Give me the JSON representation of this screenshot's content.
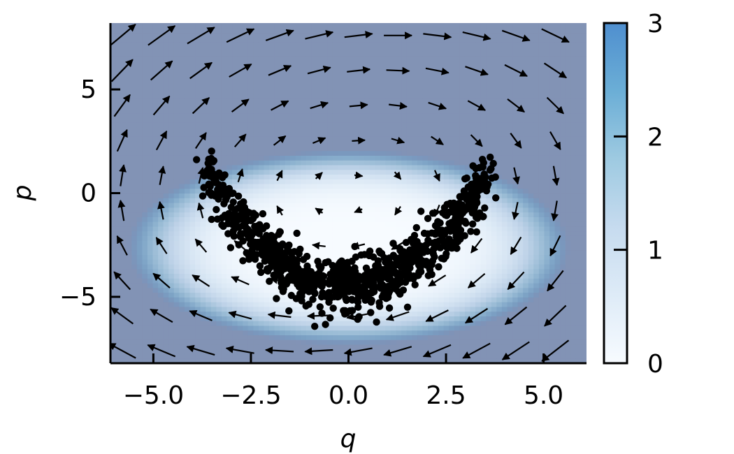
{
  "chart_data": [
    {
      "type": "heatmap",
      "xlabel": "q",
      "ylabel": "p",
      "xlim": [
        -6.1,
        6.1
      ],
      "ylim": [
        -8.2,
        8.2
      ],
      "x_ticks": [
        -5.0,
        -2.5,
        0.0,
        2.5,
        5.0
      ],
      "x_tick_labels": [
        "−5.0",
        "−2.5",
        "0.0",
        "2.5",
        "5.0"
      ],
      "y_ticks": [
        -5,
        0,
        5
      ],
      "y_tick_labels": [
        "−5",
        "0",
        "5"
      ],
      "grid": false,
      "heatmap": {
        "field": "energy level E(q,p), clipped at colorbar max",
        "valley_center": [
          0.0,
          -2.6
        ],
        "semi_axes": [
          5.9,
          4.9
        ],
        "clip_max": 3
      },
      "colorbar": {
        "min": 0,
        "max": 3,
        "ticks": [
          0,
          1,
          2,
          3
        ],
        "tick_labels": [
          "0",
          "1",
          "2",
          "3"
        ],
        "colors": [
          "#f7fbff",
          "#deebf7",
          "#c6dbef",
          "#9ecae1",
          "#6baed6",
          "#4f8fcf"
        ],
        "overlay_alpha": 0.6,
        "overlay_color": "#8593b4"
      },
      "quiver": {
        "color": "#000000",
        "x_range": [
          -5.8,
          5.3
        ],
        "y_range": [
          -7.6,
          7.6
        ],
        "nx": 12,
        "ny": 10,
        "rotation_center": [
          0.0,
          0.0
        ]
      },
      "scatter": {
        "color": "#000000",
        "count": 900,
        "curve": "p = 0.42*q^2 - 4.5",
        "q_range": [
          -3.6,
          3.6
        ],
        "spread": 0.75
      }
    }
  ]
}
